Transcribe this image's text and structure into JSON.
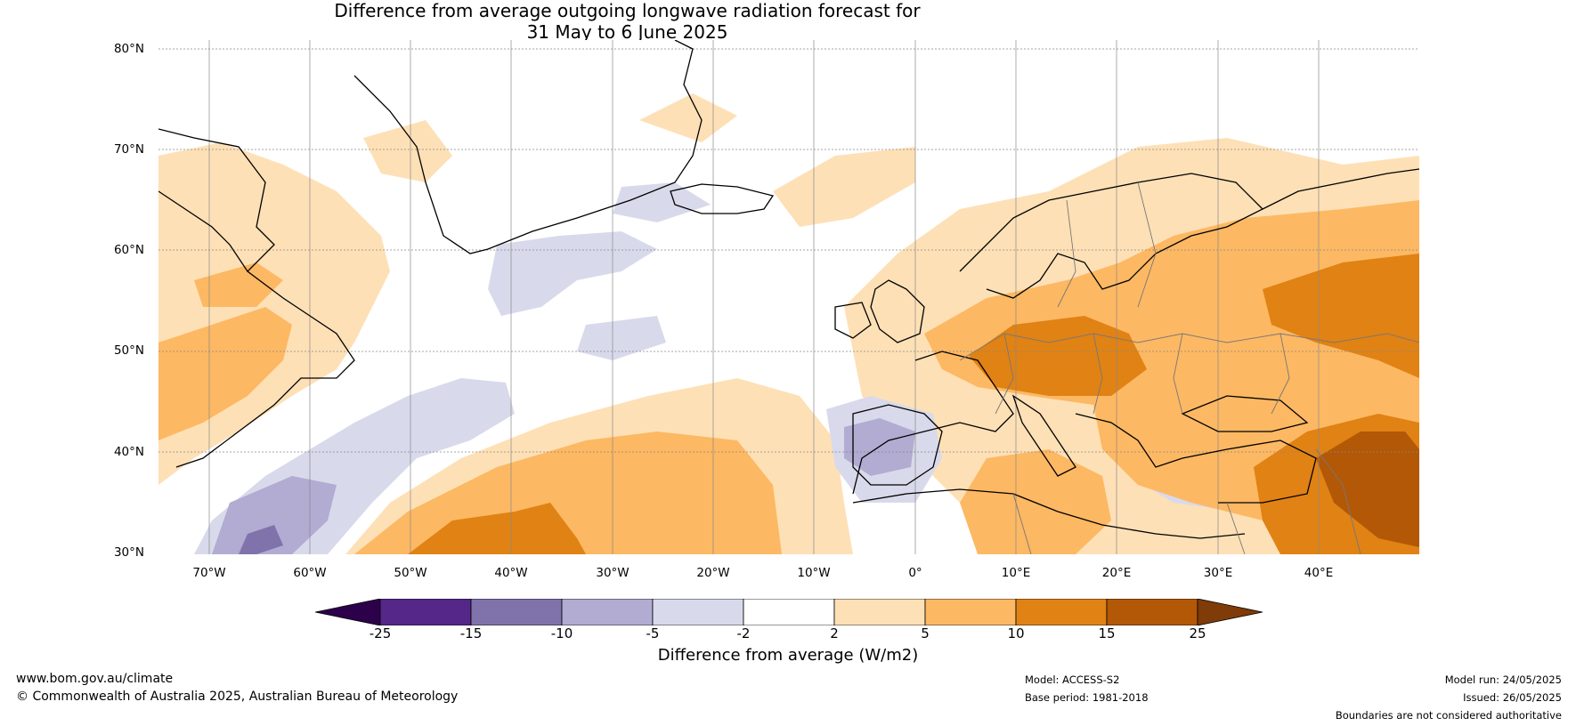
{
  "title": {
    "line1": "Difference from average outgoing longwave radiation forecast for",
    "line2": "31 May to 6 June 2025"
  },
  "map": {
    "lat_labels": [
      "80°N",
      "70°N",
      "60°N",
      "50°N",
      "40°N",
      "30°N"
    ],
    "lon_labels": [
      "70°W",
      "60°W",
      "50°W",
      "40°W",
      "30°W",
      "20°W",
      "10°W",
      "0°",
      "10°E",
      "20°E",
      "30°E",
      "40°E"
    ],
    "extent": {
      "lon_range": [
        -75,
        50
      ],
      "lat_range": [
        30,
        81
      ]
    },
    "land_outline_color": "#000000",
    "border_color": "#777777"
  },
  "legend": {
    "title": "Difference from average (W/m2)",
    "ticks": [
      "-25",
      "-15",
      "-10",
      "-5",
      "-2",
      "2",
      "5",
      "10",
      "15",
      "25"
    ],
    "colors": {
      "below_min": "#2d004b",
      "bins": [
        "#542788",
        "#8073ac",
        "#b2abd2",
        "#d8daeb",
        "#ffffff",
        "#fee0b6",
        "#fdb863",
        "#e08214",
        "#b35806"
      ],
      "above_max": "#7f3b08"
    }
  },
  "footer": {
    "website": "www.bom.gov.au/climate",
    "copyright": "© Commonwealth of Australia 2025, Australian Bureau of Meteorology",
    "model": "Model: ACCESS-S2",
    "base_period": "Base period: 1981-2018",
    "model_run": "Model run: 24/05/2025",
    "issued": "Issued: 26/05/2025",
    "disclaimer": "Boundaries are not considered authoritative"
  }
}
